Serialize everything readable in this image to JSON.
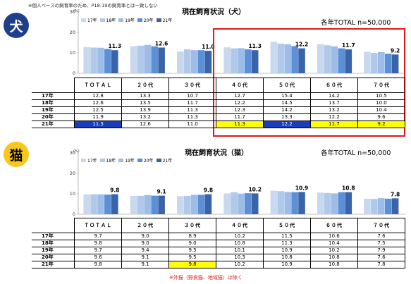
{
  "header": {
    "note": "※個人ベースの飼育率のため、P18-19の飼育率とは一致しない"
  },
  "colors": {
    "red": "#e01818",
    "highlight_blue": "#1a3dbd",
    "highlight_yellow": "#ffff00",
    "dog_badge": "#1d3f8c",
    "cat_badge": "#f7c81b"
  },
  "dog": {
    "badge": "犬",
    "title": "現在飼育状況（犬）",
    "total_note": "各年TOTAL n=50,000",
    "unit": "(%)",
    "row_label_2021": "21年"
  },
  "cat": {
    "badge": "猫",
    "title": "現在飼育状況（猫）",
    "total_note": "各年TOTAL n=50,000",
    "unit": "(%)",
    "footnote": "※外猫（野良猫、地域猫）は除く"
  },
  "chart_data": [
    {
      "type": "bar",
      "title": "現在飼育状況（犬）",
      "ylabel": "(%)",
      "ylim": [
        0,
        30
      ],
      "yticks": [
        0,
        10,
        20,
        30
      ],
      "categories": [
        "ＴＯＴＡＬ",
        "２０代",
        "３０代",
        "４０代",
        "５０代",
        "６０代",
        "７０代"
      ],
      "series": [
        {
          "name": "17年",
          "color": "#c8d8ee",
          "values": [
            12.8,
            13.3,
            10.7,
            12.7,
            15.4,
            14.2,
            10.5
          ]
        },
        {
          "name": "18年",
          "color": "#b1c9e9",
          "values": [
            12.6,
            13.5,
            11.7,
            12.2,
            14.5,
            13.7,
            10.0
          ]
        },
        {
          "name": "19年",
          "color": "#9dbde8",
          "values": [
            12.5,
            13.9,
            11.3,
            12.3,
            14.2,
            13.2,
            10.4
          ]
        },
        {
          "name": "20年",
          "color": "#5b8fd8",
          "values": [
            11.9,
            13.2,
            11.3,
            11.7,
            13.3,
            12.2,
            9.6
          ]
        },
        {
          "name": "21年",
          "color": "#3a64a8",
          "values": [
            11.3,
            12.6,
            11.0,
            11.3,
            12.2,
            11.7,
            9.2
          ]
        }
      ],
      "highlights": {
        "blue": [
          [
            4,
            0
          ],
          [
            4,
            4
          ]
        ],
        "yellow": [
          [
            4,
            3
          ],
          [
            4,
            5
          ],
          [
            4,
            6
          ]
        ]
      }
    },
    {
      "type": "bar",
      "title": "現在飼育状況（猫）",
      "ylabel": "(%)",
      "ylim": [
        0,
        30
      ],
      "yticks": [
        0,
        10,
        20,
        30
      ],
      "categories": [
        "ＴＯＴＡＬ",
        "２０代",
        "３０代",
        "４０代",
        "５０代",
        "６０代",
        "７０代"
      ],
      "series": [
        {
          "name": "17年",
          "color": "#c8d8ee",
          "values": [
            9.7,
            9.0,
            8.9,
            10.2,
            11.5,
            10.6,
            7.6
          ]
        },
        {
          "name": "18年",
          "color": "#b1c9e9",
          "values": [
            9.8,
            9.0,
            9.0,
            10.8,
            11.3,
            10.4,
            7.5
          ]
        },
        {
          "name": "19年",
          "color": "#9dbde8",
          "values": [
            9.7,
            9.4,
            9.5,
            10.1,
            10.9,
            10.2,
            7.9
          ]
        },
        {
          "name": "20年",
          "color": "#5b8fd8",
          "values": [
            9.6,
            9.1,
            9.5,
            10.3,
            10.8,
            10.8,
            7.6
          ]
        },
        {
          "name": "21年",
          "color": "#3a64a8",
          "values": [
            9.8,
            9.1,
            9.8,
            10.2,
            10.9,
            10.8,
            7.8
          ]
        }
      ],
      "highlights": {
        "blue": [],
        "yellow": [
          [
            4,
            2
          ]
        ]
      }
    }
  ]
}
